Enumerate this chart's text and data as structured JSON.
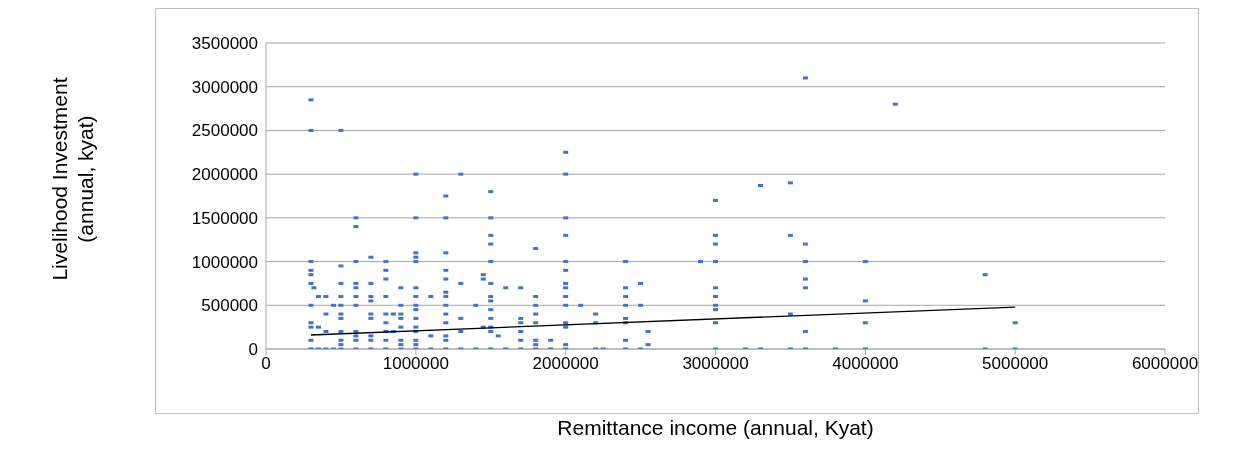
{
  "chart_data": {
    "type": "scatter",
    "xlabel": "Remittance income (annual, Kyat)",
    "ylabel": "Livelihood Investment (annual, kyat)",
    "xlim": [
      0,
      6000000
    ],
    "xticks": [
      0,
      1000000,
      2000000,
      3000000,
      4000000,
      5000000,
      6000000
    ],
    "ylim": [
      0,
      3500000
    ],
    "yticks": [
      0,
      500000,
      1000000,
      1500000,
      2000000,
      2500000,
      3000000,
      3500000
    ],
    "grid": "y",
    "series": [
      {
        "color": "#4472c4",
        "marker": "square",
        "x": [
          300000,
          300000,
          300000,
          300000,
          300000,
          300000,
          300000,
          300000,
          300000,
          300000,
          300000,
          320000,
          350000,
          350000,
          350000,
          400000,
          400000,
          400000,
          400000,
          450000,
          450000,
          500000,
          500000,
          500000,
          500000,
          500000,
          500000,
          500000,
          500000,
          500000,
          500000,
          500000,
          600000,
          600000,
          600000,
          600000,
          600000,
          600000,
          600000,
          600000,
          600000,
          600000,
          600000,
          700000,
          700000,
          700000,
          700000,
          700000,
          700000,
          700000,
          700000,
          700000,
          800000,
          800000,
          800000,
          800000,
          800000,
          800000,
          800000,
          800000,
          800000,
          850000,
          850000,
          900000,
          900000,
          900000,
          900000,
          900000,
          900000,
          900000,
          900000,
          1000000,
          1000000,
          1000000,
          1000000,
          1000000,
          1000000,
          1000000,
          1000000,
          1000000,
          1000000,
          1000000,
          1000000,
          1000000,
          1000000,
          1000000,
          1100000,
          1100000,
          1100000,
          1200000,
          1200000,
          1200000,
          1200000,
          1200000,
          1200000,
          1200000,
          1200000,
          1200000,
          1200000,
          1200000,
          1200000,
          1200000,
          1300000,
          1300000,
          1300000,
          1300000,
          1300000,
          1400000,
          1400000,
          1450000,
          1450000,
          1450000,
          1500000,
          1500000,
          1500000,
          1500000,
          1500000,
          1500000,
          1500000,
          1500000,
          1500000,
          1500000,
          1500000,
          1500000,
          1500000,
          1550000,
          1600000,
          1600000,
          1700000,
          1700000,
          1700000,
          1700000,
          1700000,
          1700000,
          1800000,
          1800000,
          1800000,
          1800000,
          1800000,
          1800000,
          1800000,
          1800000,
          1900000,
          1900000,
          2000000,
          2000000,
          2000000,
          2000000,
          2000000,
          2000000,
          2000000,
          2000000,
          2000000,
          2000000,
          2000000,
          2000000,
          2000000,
          2000000,
          2100000,
          2200000,
          2200000,
          2200000,
          2250000,
          2400000,
          2400000,
          2400000,
          2400000,
          2400000,
          2400000,
          2400000,
          2400000,
          2500000,
          2500000,
          2500000,
          2550000,
          2550000,
          2900000,
          3000000,
          3000000,
          3000000,
          3000000,
          3000000,
          3000000,
          3000000,
          3000000,
          3000000,
          3000000,
          3200000,
          3300000,
          3300000,
          3500000,
          3500000,
          3500000,
          3500000,
          3600000,
          3600000,
          3600000,
          3600000,
          3600000,
          3600000,
          3600000,
          3800000,
          4000000,
          4000000,
          4000000,
          4000000,
          4200000,
          4800000,
          4800000,
          5000000,
          5000000
        ],
        "values": [
          2850000,
          2500000,
          1000000,
          900000,
          850000,
          750000,
          500000,
          300000,
          250000,
          100000,
          0,
          700000,
          600000,
          250000,
          0,
          600000,
          400000,
          200000,
          0,
          500000,
          0,
          2500000,
          950000,
          750000,
          600000,
          500000,
          400000,
          350000,
          200000,
          100000,
          50000,
          0,
          1500000,
          1400000,
          1000000,
          750000,
          700000,
          600000,
          500000,
          200000,
          150000,
          100000,
          0,
          1050000,
          750000,
          600000,
          550000,
          400000,
          350000,
          150000,
          100000,
          0,
          1000000,
          900000,
          800000,
          600000,
          400000,
          300000,
          200000,
          100000,
          0,
          400000,
          200000,
          700000,
          500000,
          400000,
          350000,
          250000,
          100000,
          50000,
          0,
          2000000,
          1500000,
          1100000,
          1050000,
          1000000,
          700000,
          600000,
          500000,
          450000,
          350000,
          250000,
          200000,
          100000,
          50000,
          0,
          600000,
          150000,
          0,
          1750000,
          1500000,
          1100000,
          900000,
          800000,
          650000,
          600000,
          500000,
          400000,
          300000,
          150000,
          100000,
          0,
          2000000,
          750000,
          350000,
          200000,
          0,
          500000,
          0,
          850000,
          800000,
          250000,
          1800000,
          1500000,
          1300000,
          1200000,
          1000000,
          750000,
          600000,
          550000,
          450000,
          350000,
          250000,
          200000,
          0,
          150000,
          700000,
          0,
          700000,
          350000,
          300000,
          200000,
          100000,
          0,
          1150000,
          600000,
          500000,
          400000,
          300000,
          100000,
          50000,
          0,
          100000,
          0,
          2250000,
          2000000,
          1500000,
          1300000,
          1000000,
          900000,
          750000,
          700000,
          600000,
          500000,
          300000,
          250000,
          50000,
          0,
          500000,
          400000,
          300000,
          0,
          0,
          1000000,
          700000,
          600000,
          500000,
          350000,
          300000,
          100000,
          0,
          750000,
          500000,
          0,
          200000,
          50000,
          1000000,
          1700000,
          1300000,
          1200000,
          1000000,
          700000,
          600000,
          500000,
          450000,
          300000,
          0,
          0,
          1870000,
          0,
          1900000,
          1300000,
          400000,
          0,
          3100000,
          1200000,
          1000000,
          800000,
          700000,
          200000,
          0,
          0,
          1000000,
          550000,
          300000,
          0,
          2800000,
          850000,
          0,
          300000,
          0
        ]
      },
      {
        "type": "line",
        "marker": "none",
        "color": "#000000",
        "x": [
          300000,
          5000000
        ],
        "values": [
          160000,
          480000
        ]
      }
    ]
  }
}
